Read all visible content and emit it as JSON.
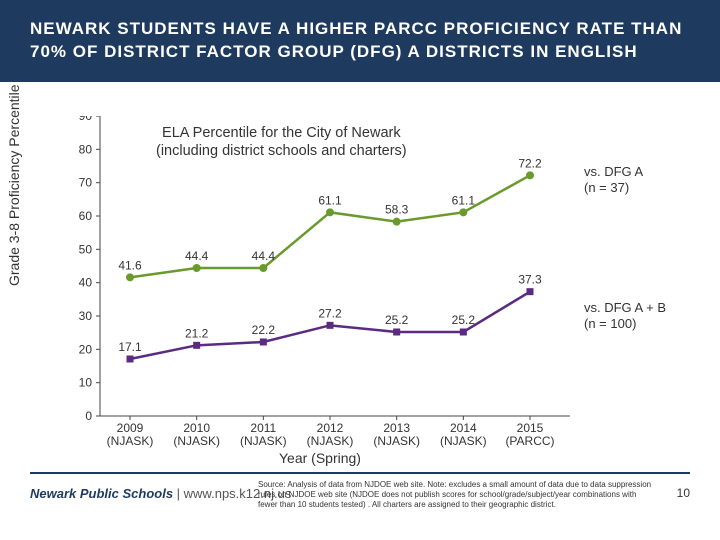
{
  "header": {
    "title": "NEWARK STUDENTS HAVE A HIGHER PARCC PROFICIENCY RATE THAN 70% OF DISTRICT FACTOR GROUP (DFG) A DISTRICTS IN ENGLISH"
  },
  "chart": {
    "type": "line",
    "subtitle_l1": "ELA Percentile for the City of Newark",
    "subtitle_l2": "(including district schools and charters)",
    "y_title": "Grade 3-8 Proficiency Percentile",
    "x_title": "Year (Spring)",
    "ylim": [
      0,
      90
    ],
    "ytick_step": 10,
    "yticks": [
      0,
      10,
      20,
      30,
      40,
      50,
      60,
      70,
      80,
      90
    ],
    "x_labels": [
      {
        "l1": "2009",
        "l2": "(NJASK)"
      },
      {
        "l1": "2010",
        "l2": "(NJASK)"
      },
      {
        "l1": "2011",
        "l2": "(NJASK)"
      },
      {
        "l1": "2012",
        "l2": "(NJASK)"
      },
      {
        "l1": "2013",
        "l2": "(NJASK)"
      },
      {
        "l1": "2014",
        "l2": "(NJASK)"
      },
      {
        "l1": "2015",
        "l2": "(PARCC)"
      }
    ],
    "series": [
      {
        "key": "dfg_a",
        "color": "#6a9a2b",
        "marker": "circle",
        "values": [
          41.6,
          44.4,
          44.4,
          61.1,
          58.3,
          61.1,
          72.2
        ],
        "legend_l1": "vs. DFG A",
        "legend_l2": "(n = 37)"
      },
      {
        "key": "dfg_ab",
        "color": "#5b2b82",
        "marker": "square",
        "values": [
          17.1,
          21.2,
          22.2,
          27.2,
          25.2,
          25.2,
          37.3
        ],
        "legend_l1": "vs. DFG A + B",
        "legend_l2": "(n = 100)"
      }
    ],
    "axis_color": "#444444",
    "background_color": "#ffffff",
    "label_fontsize": 12
  },
  "footer": {
    "org": "Newark Public Schools",
    "sep": " | ",
    "url": "www.nps.k12.nj.us",
    "source": "Source: Analysis of data from NJDOE web site. Note: excludes a small amount of data due to data suppression rules on NJDOE web site (NJDOE does not publish scores for school/grade/subject/year combinations with fewer than 10 students tested) .  All charters are assigned to their geographic district.",
    "page": "10"
  }
}
